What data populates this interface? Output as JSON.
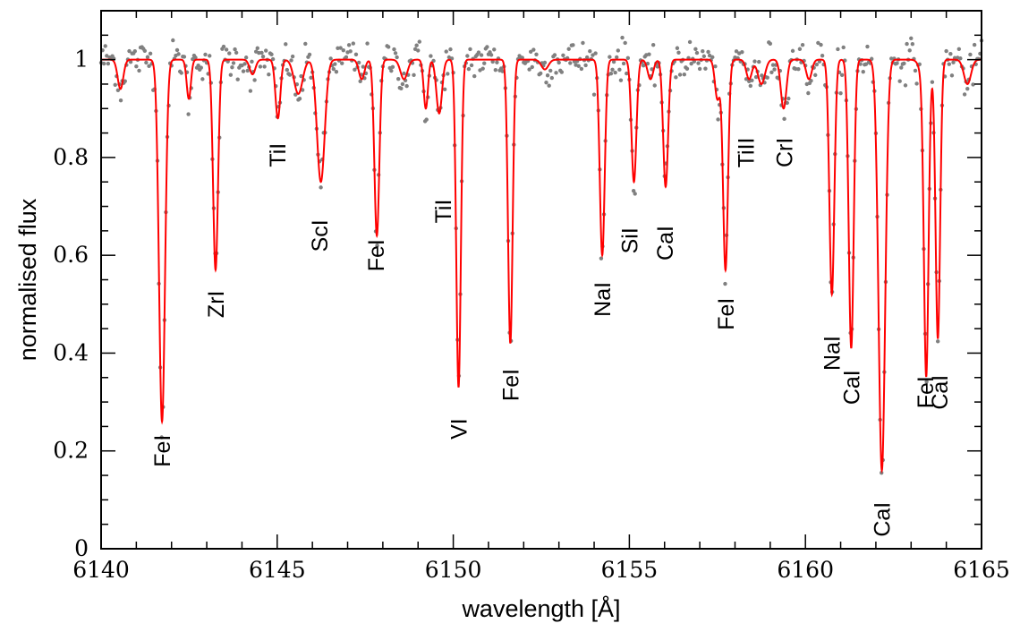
{
  "chart_data": {
    "type": "line",
    "title": "",
    "xlabel": "wavelength [Å]",
    "ylabel": "normalised flux",
    "xlim": [
      6140,
      6165
    ],
    "ylim": [
      0,
      1.1
    ],
    "x_ticks": [
      "6140",
      "6145",
      "6150",
      "6155",
      "6160",
      "6165"
    ],
    "y_ticks": [
      "0",
      "0.2",
      "0.4",
      "0.6",
      "0.8",
      "1"
    ],
    "x_tick_values": [
      6140,
      6145,
      6150,
      6155,
      6160,
      6165
    ],
    "y_tick_values": [
      0,
      0.2,
      0.4,
      0.6,
      0.8,
      1.0
    ],
    "grid": false,
    "colors": {
      "model": "#ff0000",
      "observed": "#808080",
      "frame": "#000000"
    },
    "series": [
      {
        "kind": "model-line",
        "lines": [
          {
            "x": 6140.55,
            "depth": 0.06,
            "width": 0.08
          },
          {
            "x": 6141.73,
            "depth": 0.74,
            "width": 0.085
          },
          {
            "x": 6142.49,
            "depth": 0.08,
            "width": 0.06
          },
          {
            "x": 6143.25,
            "depth": 0.43,
            "width": 0.07
          },
          {
            "x": 6144.3,
            "depth": 0.03,
            "width": 0.08
          },
          {
            "x": 6145.02,
            "depth": 0.12,
            "width": 0.07
          },
          {
            "x": 6145.6,
            "depth": 0.07,
            "width": 0.12
          },
          {
            "x": 6146.24,
            "depth": 0.25,
            "width": 0.11
          },
          {
            "x": 6147.4,
            "depth": 0.04,
            "width": 0.08
          },
          {
            "x": 6147.83,
            "depth": 0.36,
            "width": 0.07
          },
          {
            "x": 6148.6,
            "depth": 0.04,
            "width": 0.1
          },
          {
            "x": 6149.22,
            "depth": 0.1,
            "width": 0.06
          },
          {
            "x": 6149.6,
            "depth": 0.11,
            "width": 0.08
          },
          {
            "x": 6150.15,
            "depth": 0.67,
            "width": 0.065
          },
          {
            "x": 6151.62,
            "depth": 0.58,
            "width": 0.065
          },
          {
            "x": 6152.6,
            "depth": 0.02,
            "width": 0.1
          },
          {
            "x": 6154.23,
            "depth": 0.4,
            "width": 0.07
          },
          {
            "x": 6155.13,
            "depth": 0.25,
            "width": 0.07
          },
          {
            "x": 6155.6,
            "depth": 0.04,
            "width": 0.08
          },
          {
            "x": 6156.03,
            "depth": 0.26,
            "width": 0.07
          },
          {
            "x": 6157.5,
            "depth": 0.08,
            "width": 0.07
          },
          {
            "x": 6157.73,
            "depth": 0.43,
            "width": 0.07
          },
          {
            "x": 6158.4,
            "depth": 0.04,
            "width": 0.08
          },
          {
            "x": 6158.75,
            "depth": 0.05,
            "width": 0.1
          },
          {
            "x": 6159.38,
            "depth": 0.1,
            "width": 0.08
          },
          {
            "x": 6160.1,
            "depth": 0.04,
            "width": 0.08
          },
          {
            "x": 6160.75,
            "depth": 0.48,
            "width": 0.07
          },
          {
            "x": 6161.3,
            "depth": 0.59,
            "width": 0.07
          },
          {
            "x": 6162.17,
            "depth": 0.84,
            "width": 0.095
          },
          {
            "x": 6163.4,
            "depth": 0.05,
            "width": 0.12
          },
          {
            "x": 6163.43,
            "depth": 0.6,
            "width": 0.065
          },
          {
            "x": 6163.76,
            "depth": 0.57,
            "width": 0.065
          },
          {
            "x": 6164.6,
            "depth": 0.05,
            "width": 0.1
          }
        ]
      },
      {
        "kind": "observed-points",
        "x_start": 6140.0,
        "x_step": 0.04,
        "scatter": 0.02
      }
    ],
    "annotations": [
      {
        "text": "FeI",
        "x": 6141.73,
        "y": 0.2
      },
      {
        "text": "ZrI",
        "x": 6143.25,
        "y": 0.5
      },
      {
        "text": "TiI",
        "x": 6145.0,
        "y": 0.805
      },
      {
        "text": "ScI",
        "x": 6146.2,
        "y": 0.64
      },
      {
        "text": "FeI",
        "x": 6147.8,
        "y": 0.6
      },
      {
        "text": "TiI",
        "x": 6149.7,
        "y": 0.69
      },
      {
        "text": "VI",
        "x": 6150.15,
        "y": 0.245
      },
      {
        "text": "FeI",
        "x": 6151.62,
        "y": 0.335
      },
      {
        "text": "NaI",
        "x": 6154.23,
        "y": 0.51
      },
      {
        "text": "SiI",
        "x": 6155.0,
        "y": 0.63
      },
      {
        "text": "CaI",
        "x": 6156.0,
        "y": 0.625
      },
      {
        "text": "FeI",
        "x": 6157.73,
        "y": 0.48
      },
      {
        "text": "TiII",
        "x": 6158.3,
        "y": 0.81
      },
      {
        "text": "CrI",
        "x": 6159.4,
        "y": 0.81
      },
      {
        "text": "NaI",
        "x": 6160.75,
        "y": 0.4
      },
      {
        "text": "CaI",
        "x": 6161.3,
        "y": 0.33
      },
      {
        "text": "CaI",
        "x": 6162.17,
        "y": 0.06
      },
      {
        "text": "FeI",
        "x": 6163.4,
        "y": 0.32
      },
      {
        "text": "CaI",
        "x": 6163.8,
        "y": 0.32
      }
    ]
  }
}
